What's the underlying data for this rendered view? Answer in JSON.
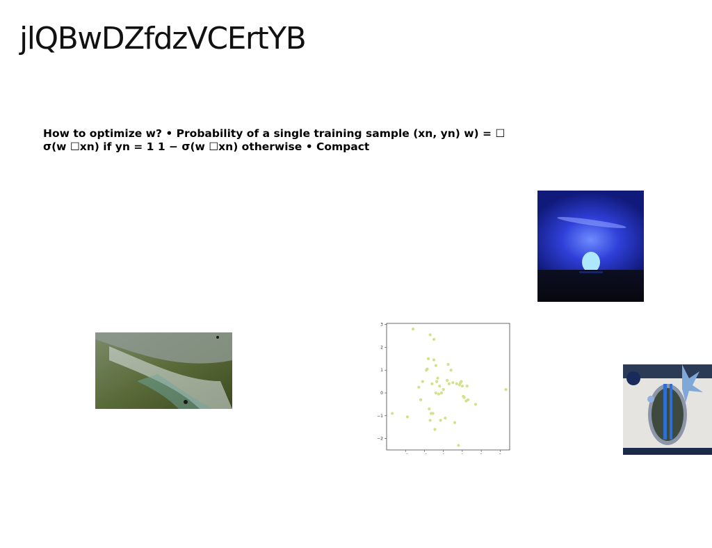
{
  "slide": {
    "title": "jlQBwDZfdzVCErtYB",
    "body_text": "How to optimize w? • Probability of a single training sample (xn, yn) w) = ☐ σ(w ☐xn) if yn = 1 1 − σ(w ☐xn) otherwise • Compact"
  },
  "chart_data": {
    "type": "scatter",
    "title": "",
    "xlabel": "",
    "ylabel": "",
    "xlim": [
      -3,
      3.5
    ],
    "ylim": [
      -2.5,
      3.05
    ],
    "xticks": [
      -2,
      -1,
      0,
      1,
      2,
      3
    ],
    "yticks": [
      -2,
      -1,
      0,
      1,
      2,
      3
    ],
    "grid": false,
    "color": "#d4e08a",
    "x": [
      -1.6,
      -0.7,
      -0.5,
      -2.7,
      -1.9,
      -1.3,
      -1.1,
      -0.9,
      -0.8,
      -0.75,
      -0.7,
      -0.6,
      -0.55,
      -0.5,
      -0.45,
      -0.4,
      -0.35,
      -0.3,
      -0.25,
      -0.2,
      -0.15,
      -0.1,
      0.0,
      0.1,
      0.2,
      0.25,
      0.3,
      0.4,
      0.5,
      0.7,
      0.8,
      0.85,
      0.9,
      1.0,
      1.1,
      1.2,
      1.25,
      1.3,
      1.7,
      3.3,
      -1.2,
      -0.85,
      -0.65,
      -0.4,
      0.6,
      0.95,
      1.05
    ],
    "y": [
      2.8,
      2.55,
      2.35,
      -0.9,
      -1.05,
      0.25,
      0.5,
      1.0,
      1.5,
      -0.7,
      -1.2,
      0.4,
      -0.9,
      1.45,
      -1.6,
      0.0,
      0.5,
      0.65,
      -0.05,
      0.3,
      -1.2,
      0.0,
      0.15,
      -1.1,
      0.55,
      1.25,
      0.4,
      1.0,
      0.45,
      0.4,
      -2.3,
      0.35,
      0.45,
      0.3,
      -0.2,
      -0.35,
      0.3,
      -0.3,
      -0.5,
      0.15,
      -0.3,
      1.05,
      -0.9,
      1.2,
      -1.3,
      0.5,
      -0.15
    ]
  },
  "images": {
    "moon": "sun-setting-over-sea-blue-photo",
    "surf": "aerial-wave-shoreline-photo",
    "table": "blue-table-setting-photo"
  }
}
